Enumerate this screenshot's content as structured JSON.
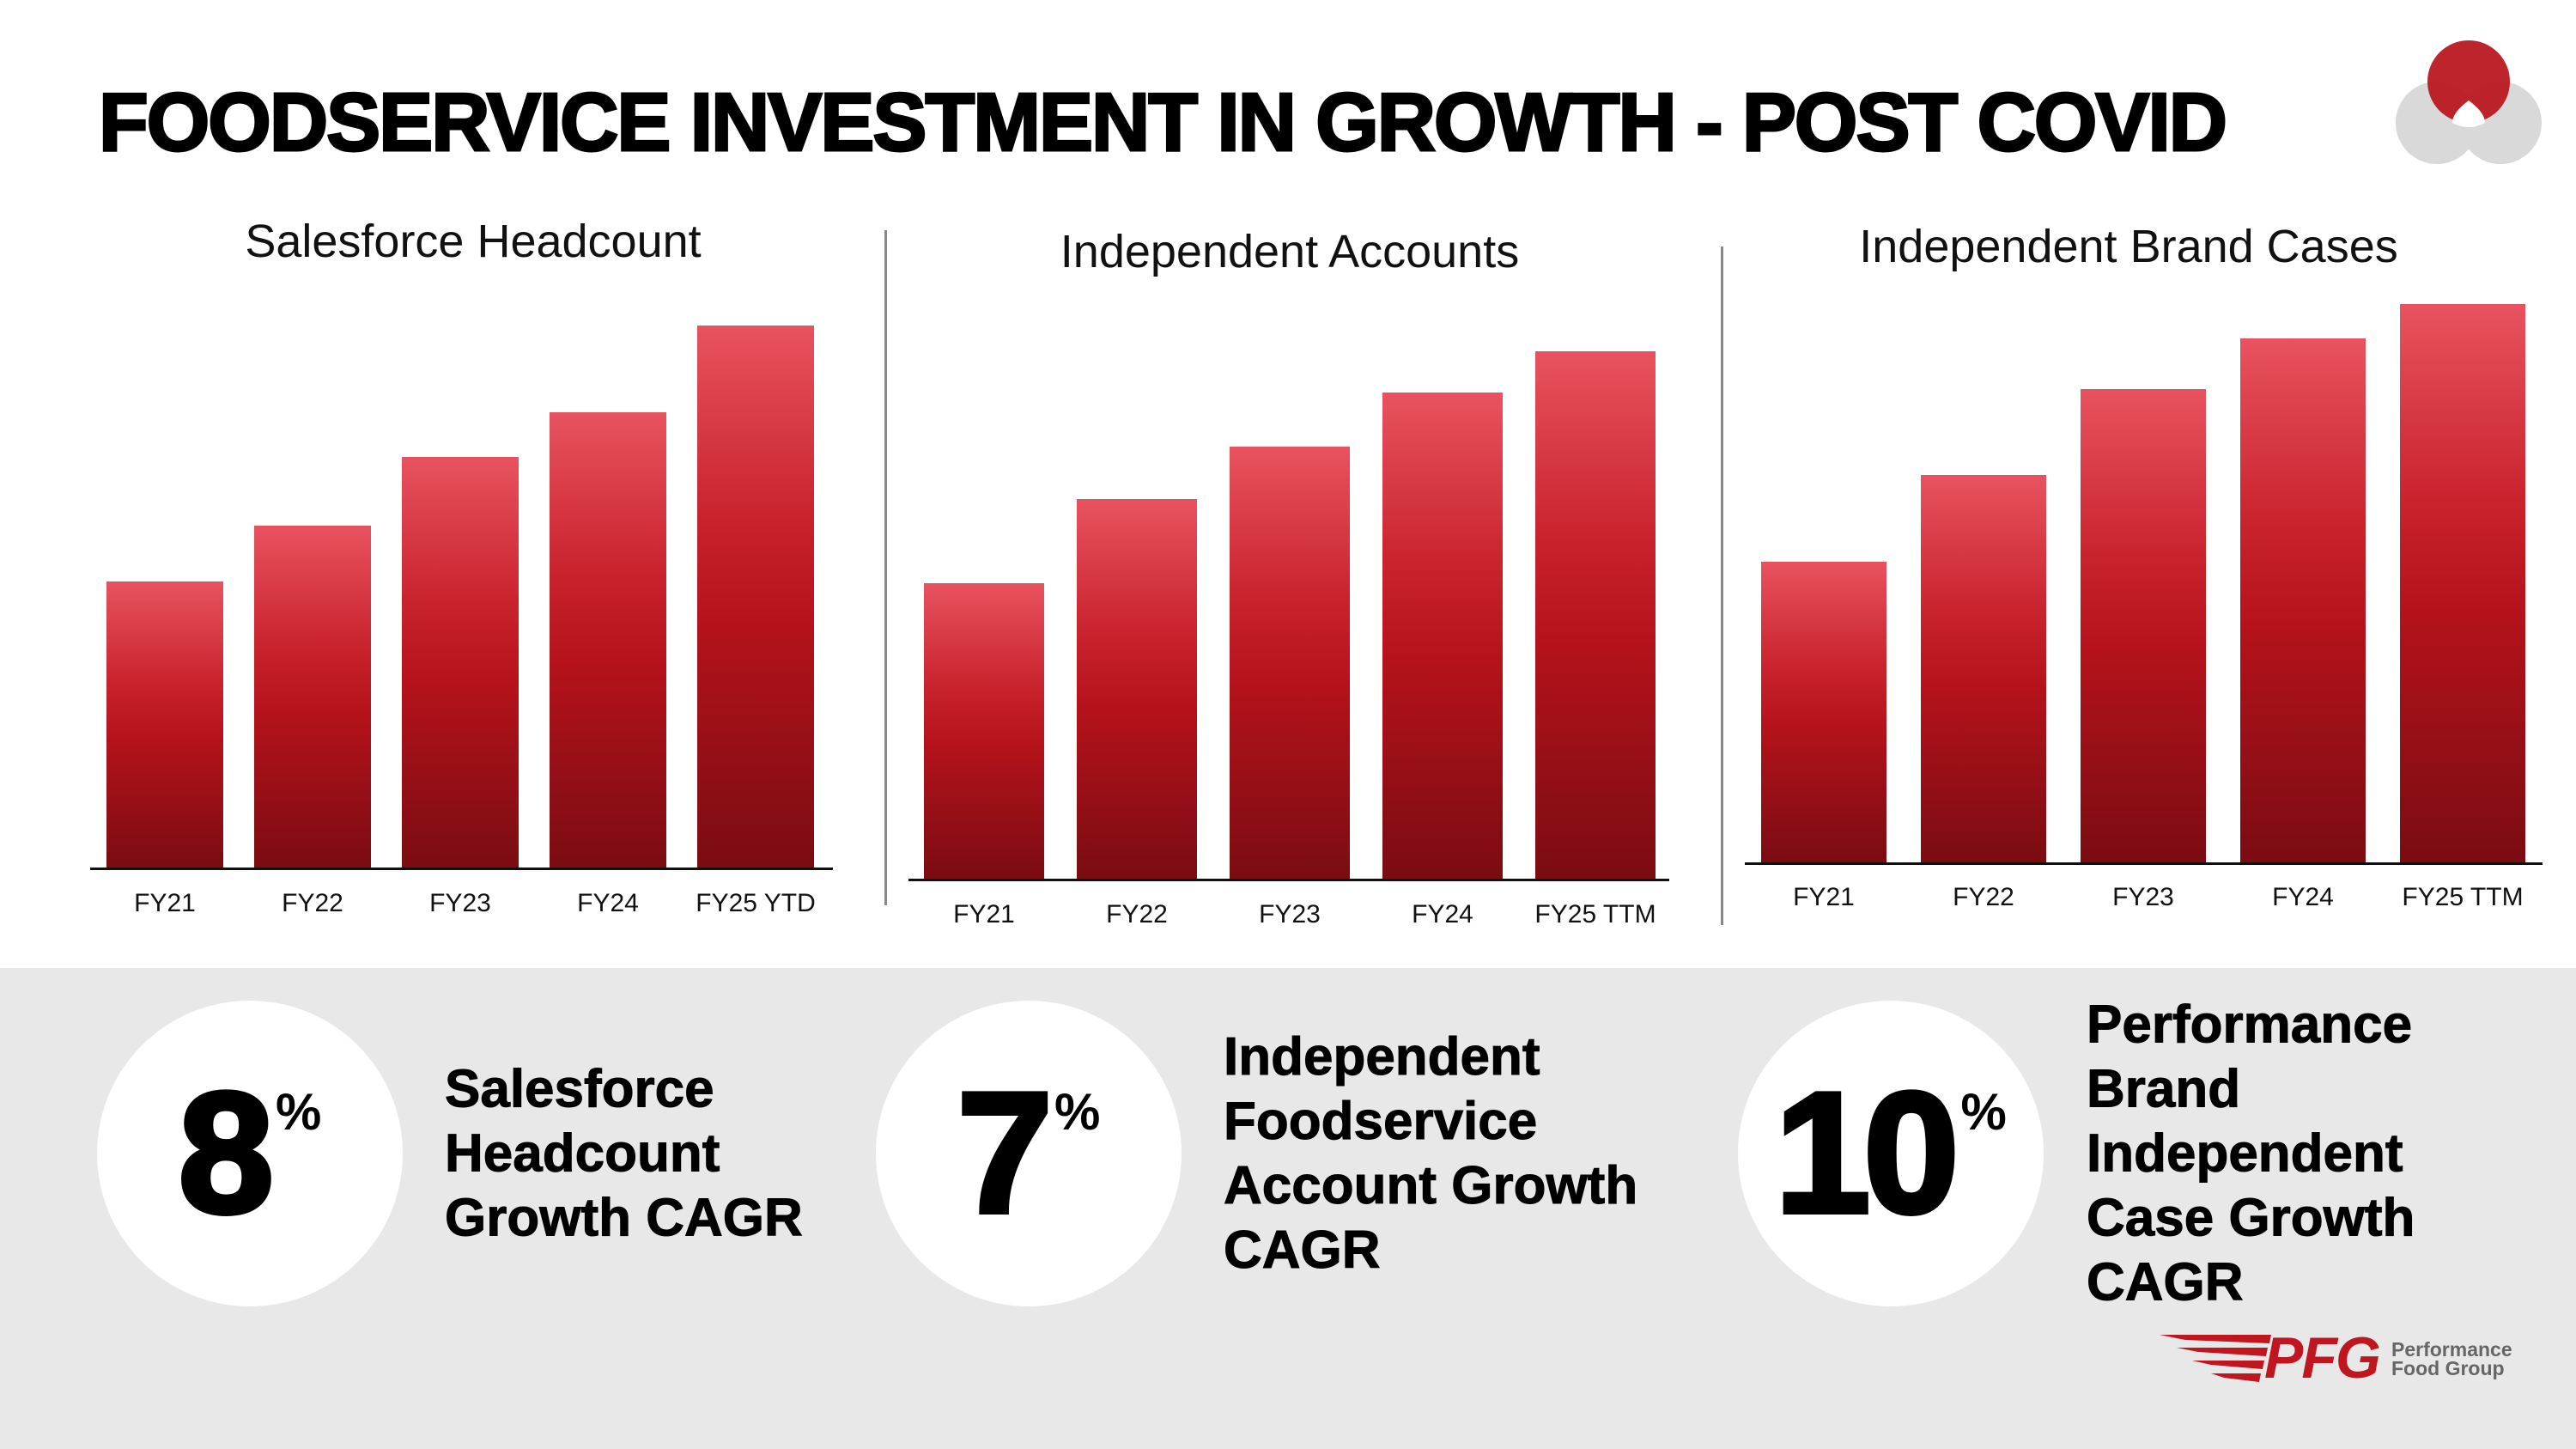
{
  "title": "FOODSERVICE INVESTMENT IN GROWTH - POST COVID",
  "colors": {
    "bar_top": "#e8535f",
    "bar_bottom": "#7a0c12",
    "brand_red": "#c0161f",
    "band": "#e8e8e8"
  },
  "chart_data": [
    {
      "type": "bar",
      "title": "Salesforce Headcount",
      "categories": [
        "FY21",
        "FY22",
        "FY23",
        "FY24",
        "FY25 YTD"
      ],
      "values": [
        174,
        208,
        250,
        277,
        330
      ],
      "value_units": "relative (no axis printed)",
      "grid": false
    },
    {
      "type": "bar",
      "title": "Independent Accounts",
      "categories": [
        "FY21",
        "FY22",
        "FY23",
        "FY24",
        "FY25 TTM"
      ],
      "values": [
        180,
        231,
        263,
        296,
        321
      ],
      "value_units": "relative (no axis printed)",
      "grid": false
    },
    {
      "type": "bar",
      "title": "Independent Brand Cases",
      "categories": [
        "FY21",
        "FY22",
        "FY23",
        "FY24",
        "FY25 TTM"
      ],
      "values": [
        183,
        236,
        288,
        319,
        340
      ],
      "value_units": "relative (no axis printed)",
      "grid": false
    }
  ],
  "stats": [
    {
      "value": "8",
      "unit": "%",
      "lines": [
        "Salesforce",
        "Headcount",
        "Growth CAGR"
      ]
    },
    {
      "value": "7",
      "unit": "%",
      "lines": [
        "Independent",
        "Foodservice",
        "Account Growth",
        "CAGR"
      ]
    },
    {
      "value": "10",
      "unit": "%",
      "lines": [
        "Performance Brand",
        "Independent",
        "Case Growth CAGR"
      ]
    }
  ],
  "logo": {
    "mark": "PFG",
    "line1": "Performance",
    "line2": "Food Group"
  }
}
